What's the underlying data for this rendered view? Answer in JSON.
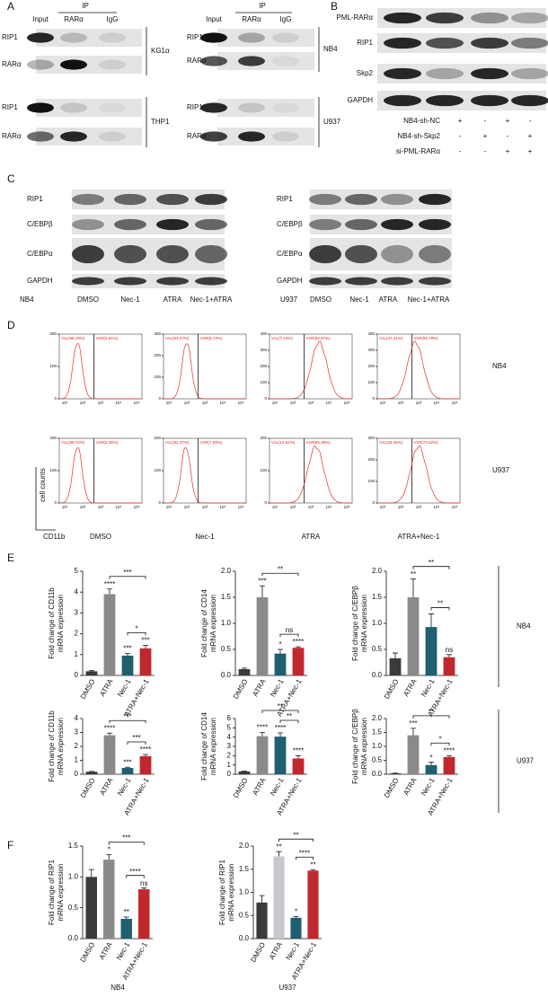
{
  "figure": {
    "panel_labels": [
      "A",
      "B",
      "C",
      "D",
      "E",
      "F"
    ],
    "panel_a": {
      "groups": [
        {
          "ip_label": "IP",
          "columns": [
            "Input",
            "RARα",
            "IgG"
          ],
          "blots": [
            {
              "cell": "KG1α",
              "rows": [
                "RIP1",
                "RARα"
              ]
            },
            {
              "cell": "THP1",
              "rows": [
                "RIP1",
                "RARα"
              ]
            }
          ]
        },
        {
          "ip_label": "IP",
          "columns": [
            "Input",
            "RARα",
            "IgG"
          ],
          "blots": [
            {
              "cell": "NB4",
              "rows": [
                "RIP1",
                "RARα"
              ]
            },
            {
              "cell": "U937",
              "rows": [
                "RIP1",
                "RARα"
              ]
            }
          ]
        }
      ]
    },
    "panel_b": {
      "rows": [
        "PML-RARα",
        "RIP1",
        "Skp2",
        "GAPDH"
      ],
      "conditions": [
        {
          "label": "NB4-sh-NC",
          "marks": [
            "+",
            "-",
            "+",
            "-"
          ]
        },
        {
          "label": "NB4-sh-Skp2",
          "marks": [
            "-",
            "+",
            "-",
            "+"
          ]
        },
        {
          "label": "si-PML-RARα",
          "marks": [
            "-",
            "-",
            "+",
            "+"
          ]
        }
      ]
    },
    "panel_c": {
      "blots": [
        {
          "cell": "NB4",
          "rows": [
            "RIP1",
            "C/EBPβ",
            "C/EBPα",
            "GAPDH"
          ],
          "treatments": [
            "DMSO",
            "Nec-1",
            "ATRA",
            "Nec-1+ATRA"
          ]
        },
        {
          "cell": "U937",
          "rows": [
            "RIP1",
            "C/EBPβ",
            "C/EBPα",
            "GAPDH"
          ],
          "treatments": [
            "DMSO",
            "Nec-1",
            "ATRA",
            "Nec-1+ATRA"
          ]
        }
      ]
    },
    "panel_d": {
      "y_label": "cell counts",
      "x_label": "CD11b",
      "treatments": [
        "DMSO",
        "Nec-1",
        "ATRA",
        "ATRA+Nec-1"
      ],
      "xticks": [
        "10¹",
        "10²",
        "10³",
        "10⁴",
        "10⁵"
      ],
      "rows": [
        {
          "cell": "NB4",
          "histograms": [
            {
              "gate_left": "V1L(99.19%)",
              "gate_right": "V1R(0.81%)",
              "yticks": [
                0,
                100,
                200
              ]
            },
            {
              "gate_left": "V1L(93.27%)",
              "gate_right": "V1R(6.73%)",
              "yticks": [
                0,
                100,
                200,
                300
              ]
            },
            {
              "gate_left": "V1L(7.13%)",
              "gate_right": "V1R(92.87%)",
              "yticks": [
                0,
                100,
                200,
                300,
                400
              ]
            },
            {
              "gate_left": "V1L(37.21%)",
              "gate_right": "V1R(62.79%)",
              "yticks": [
                0,
                100,
                200,
                300,
                400
              ]
            }
          ]
        },
        {
          "cell": "U937",
          "histograms": [
            {
              "gate_left": "V1L(99.74%)",
              "gate_right": "V1R(0.26%)",
              "yticks": [
                0,
                100,
                200
              ]
            },
            {
              "gate_left": "V1L(92.37%)",
              "gate_right": "V1R(7.63%)",
              "yticks": [
                0,
                100,
                200
              ]
            },
            {
              "gate_left": "V1L(14.62%)",
              "gate_right": "V1R(85.38%)",
              "yticks": [
                0,
                100,
                200
              ]
            },
            {
              "gate_left": "V1L(25.38%)",
              "gate_right": "V1R(74.62%)",
              "yticks": [
                0,
                100,
                200,
                300
              ]
            }
          ]
        }
      ]
    },
    "panel_e": {
      "row_labels": [
        "NB4",
        "U937"
      ]
    }
  },
  "chart_data": [
    {
      "type": "bar",
      "ylabel": [
        "Fold change of CD11b",
        "mRNA  expression"
      ],
      "categories": [
        "DMSO",
        "ATRA",
        "Nec-1",
        "ATRA+Nec-1"
      ],
      "colors": [
        "#3a3a3a",
        "#8a8a8a",
        "#1f5f70",
        "#c0282d"
      ],
      "values": [
        0.2,
        3.9,
        0.95,
        1.3
      ],
      "errors": [
        0.03,
        0.25,
        0.1,
        0.15
      ],
      "significance": [
        null,
        "****",
        "***",
        "***"
      ],
      "ylim": [
        0,
        5
      ],
      "yticks": [
        0,
        1,
        2,
        3,
        4,
        5
      ],
      "brackets": [
        {
          "between": [
            "Nec-1",
            "ATRA+Nec-1"
          ],
          "label": "*"
        },
        {
          "between": [
            "ATRA",
            "ATRA+Nec-1"
          ],
          "label": "***"
        }
      ]
    },
    {
      "type": "bar",
      "ylabel": [
        "Fold change of CD14",
        "mRNA  expression"
      ],
      "categories": [
        "DMSO",
        "ATRA",
        "Nec-1",
        "ATRA+Nec-1"
      ],
      "colors": [
        "#3a3a3a",
        "#8a8a8a",
        "#1f5f70",
        "#c0282d"
      ],
      "values": [
        0.12,
        1.5,
        0.42,
        0.53
      ],
      "errors": [
        0.02,
        0.22,
        0.08,
        0.02
      ],
      "significance": [
        null,
        "***",
        "*",
        "****"
      ],
      "ylim": [
        0,
        2
      ],
      "yticks": [
        {
          "value": 0,
          "label": "0.0"
        },
        0.5,
        {
          "value": 1,
          "label": "1.0"
        },
        1.5,
        {
          "value": 2,
          "label": "2.0"
        }
      ],
      "brackets": [
        {
          "between": [
            "Nec-1",
            "ATRA+Nec-1"
          ],
          "label": "ns"
        },
        {
          "between": [
            "ATRA",
            "ATRA+Nec-1"
          ],
          "label": "**"
        }
      ]
    },
    {
      "type": "bar",
      "ylabel": [
        "Fold change of C/EBPβ",
        "mRNA  expression"
      ],
      "categories": [
        "DMSO",
        "ATRA",
        "Nec-1",
        "ATRA+Nec-1"
      ],
      "colors": [
        "#3a3a3a",
        "#8a8a8a",
        "#1f5f70",
        "#c0282d"
      ],
      "values": [
        0.33,
        1.5,
        0.93,
        0.35
      ],
      "errors": [
        0.1,
        0.35,
        0.25,
        0.05
      ],
      "significance": [
        null,
        "**",
        null,
        "ns"
      ],
      "ylim": [
        0,
        2
      ],
      "yticks": [
        {
          "value": 0,
          "label": "0.0"
        },
        0.5,
        {
          "value": 1,
          "label": "1.0"
        },
        1.5,
        {
          "value": 2,
          "label": "2.0"
        }
      ],
      "brackets": [
        {
          "between": [
            "Nec-1",
            "ATRA+Nec-1"
          ],
          "label": "**"
        },
        {
          "between": [
            "ATRA",
            "ATRA+Nec-1"
          ],
          "label": "**"
        }
      ]
    },
    {
      "type": "bar",
      "ylabel": [
        "Fold change of CD11b",
        "mRNA  expression"
      ],
      "categories": [
        "DMSO",
        "ATRA",
        "Nec-1",
        "ATRA+Nec-1"
      ],
      "colors": [
        "#3a3a3a",
        "#8a8a8a",
        "#1f5f70",
        "#c0282d"
      ],
      "values": [
        0.18,
        2.8,
        0.45,
        1.3
      ],
      "errors": [
        0.02,
        0.15,
        0.05,
        0.12
      ],
      "significance": [
        null,
        "****",
        "***",
        "****"
      ],
      "ylim": [
        0,
        4
      ],
      "yticks": [
        0,
        1,
        2,
        3,
        4
      ],
      "brackets": [
        {
          "between": [
            "Nec-1",
            "ATRA+Nec-1"
          ],
          "label": "***"
        },
        {
          "between": [
            "ATRA",
            "ATRA+Nec-1"
          ],
          "label": "***"
        }
      ]
    },
    {
      "type": "bar",
      "ylabel": [
        "Fold change of CD14",
        "mRNA  expression"
      ],
      "categories": [
        "DMSO",
        "ATRA",
        "Nec-1",
        "ATRA+Nec-1"
      ],
      "colors": [
        "#3a3a3a",
        "#8a8a8a",
        "#1f5f70",
        "#c0282d"
      ],
      "values": [
        0.3,
        4.1,
        4.05,
        1.7
      ],
      "errors": [
        0.05,
        0.4,
        0.4,
        0.3
      ],
      "significance": [
        null,
        "****",
        "****",
        "****"
      ],
      "ylim": [
        0,
        6
      ],
      "yticks": [
        0,
        1,
        2,
        3,
        4,
        5,
        6
      ],
      "brackets": [
        {
          "between": [
            "Nec-1",
            "ATRA+Nec-1"
          ],
          "label": "**"
        },
        {
          "between": [
            "ATRA",
            "ATRA+Nec-1"
          ],
          "label": "**"
        }
      ]
    },
    {
      "type": "bar",
      "ylabel": [
        "Fold change of C/EBPβ",
        "mRNA  expression"
      ],
      "categories": [
        "DMSO",
        "ATRA",
        "Nec-1",
        "ATRA+Nec-1"
      ],
      "colors": [
        "#3a3a3a",
        "#8a8a8a",
        "#1f5f70",
        "#c0282d"
      ],
      "values": [
        0.03,
        1.4,
        0.33,
        0.62
      ],
      "errors": [
        0.01,
        0.25,
        0.1,
        0.05
      ],
      "significance": [
        null,
        "***",
        "*",
        "****"
      ],
      "ylim": [
        0,
        2
      ],
      "yticks": [
        {
          "value": 0,
          "label": "0.0"
        },
        0.5,
        {
          "value": 1,
          "label": "1.0"
        },
        1.5,
        {
          "value": 2,
          "label": "2.0"
        }
      ],
      "brackets": [
        {
          "between": [
            "Nec-1",
            "ATRA+Nec-1"
          ],
          "label": "*"
        },
        {
          "between": [
            "ATRA",
            "ATRA+Nec-1"
          ],
          "label": "**"
        }
      ]
    },
    {
      "type": "bar",
      "ylabel": [
        "Fold change of RIP1",
        "mRNA  expression"
      ],
      "xlabel": "NB4",
      "categories": [
        "DMSO",
        "ATRA",
        "Nec-1",
        "ATRA+Nec-1"
      ],
      "colors": [
        "#3a3a3a",
        "#8a8a8a",
        "#1f5f70",
        "#c0282d"
      ],
      "values": [
        1.0,
        1.28,
        0.32,
        0.8
      ],
      "errors": [
        0.12,
        0.08,
        0.03,
        0.02
      ],
      "significance": [
        null,
        "*",
        "**",
        "ns"
      ],
      "ylim": [
        0,
        1.5
      ],
      "yticks": [
        {
          "value": 0,
          "label": "0.0"
        },
        0.5,
        {
          "value": 1,
          "label": "1.0"
        },
        1.5
      ],
      "brackets": [
        {
          "between": [
            "Nec-1",
            "ATRA+Nec-1"
          ],
          "label": "****"
        },
        {
          "between": [
            "ATRA",
            "ATRA+Nec-1"
          ],
          "label": "***"
        }
      ]
    },
    {
      "type": "bar",
      "ylabel": [
        "Fold change of RIP1",
        "mRNA  expression"
      ],
      "xlabel": "U937",
      "categories": [
        "DMSO",
        "ATRA",
        "Nec-1",
        "ATRA+Nec-1"
      ],
      "colors": [
        "#3a3a3a",
        "#c8c8cc",
        "#1f5f70",
        "#c0282d"
      ],
      "values": [
        0.78,
        1.78,
        0.45,
        1.47
      ],
      "errors": [
        0.15,
        0.1,
        0.03,
        0.02
      ],
      "significance": [
        null,
        "**",
        "*",
        "**"
      ],
      "ylim": [
        0,
        2
      ],
      "yticks": [
        {
          "value": 0,
          "label": "0.0"
        },
        0.5,
        {
          "value": 1,
          "label": "1.0"
        },
        1.5,
        {
          "value": 2,
          "label": "2.0"
        }
      ],
      "brackets": [
        {
          "between": [
            "Nec-1",
            "ATRA+Nec-1"
          ],
          "label": "****"
        },
        {
          "between": [
            "ATRA",
            "ATRA+Nec-1"
          ],
          "label": "**"
        }
      ]
    }
  ]
}
